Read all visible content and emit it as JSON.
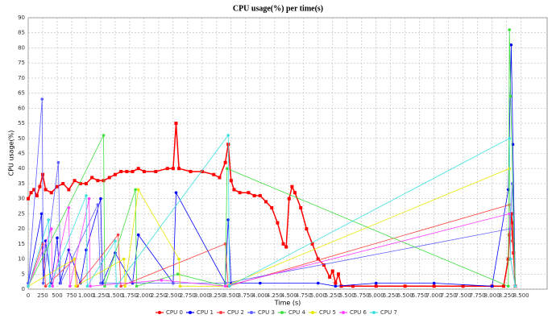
{
  "chart_data": {
    "type": "line",
    "title": "CPU usage(%) per time(s)",
    "x_label": "Time (s)",
    "y_label": "CPU usage(%)",
    "xlim": [
      0,
      8950
    ],
    "ylim": [
      0,
      90
    ],
    "grid": true,
    "legend": "bottom",
    "yticks": [
      0,
      5,
      10,
      15,
      20,
      25,
      30,
      35,
      40,
      45,
      50,
      55,
      60,
      65,
      70,
      75,
      80,
      85,
      90
    ],
    "xticks": [
      0,
      250,
      500,
      750,
      {
        "value": 1000,
        "label": "1.000"
      },
      {
        "value": 1250,
        "label": "1.250"
      },
      {
        "value": 1500,
        "label": "1.500"
      },
      {
        "value": 1750,
        "label": "1.750"
      },
      {
        "value": 2000,
        "label": "2.000"
      },
      {
        "value": 2250,
        "label": "2.250"
      },
      {
        "value": 2500,
        "label": "2.500"
      },
      {
        "value": 2750,
        "label": "2.750"
      },
      {
        "value": 3000,
        "label": "3.000"
      },
      {
        "value": 3250,
        "label": "3.250"
      },
      {
        "value": 3500,
        "label": "3.500"
      },
      {
        "value": 3750,
        "label": "3.750"
      },
      {
        "value": 4000,
        "label": "4.000"
      },
      {
        "value": 4250,
        "label": "4.250"
      },
      {
        "value": 4500,
        "label": "4.500"
      },
      {
        "value": 4750,
        "label": "4.750"
      },
      {
        "value": 5000,
        "label": "5.000"
      },
      {
        "value": 5250,
        "label": "5.250"
      },
      {
        "value": 5500,
        "label": "5.500"
      },
      {
        "value": 5750,
        "label": "5.750"
      },
      {
        "value": 6000,
        "label": "6.000"
      },
      {
        "value": 6250,
        "label": "6.250"
      },
      {
        "value": 6500,
        "label": "6.500"
      },
      {
        "value": 6750,
        "label": "6.750"
      },
      {
        "value": 7000,
        "label": "7.000"
      },
      {
        "value": 7250,
        "label": "7.250"
      },
      {
        "value": 7500,
        "label": "7.500"
      },
      {
        "value": 7750,
        "label": "7.750"
      },
      {
        "value": 8000,
        "label": "8.000"
      },
      {
        "value": 8250,
        "label": "8.250"
      },
      {
        "value": 8500,
        "label": "8.500"
      }
    ],
    "series": [
      {
        "name": "CPU 0",
        "color": "#ff0000",
        "x": [
          0,
          50,
          100,
          150,
          200,
          250,
          300,
          400,
          500,
          600,
          700,
          800,
          900,
          1000,
          1100,
          1200,
          1300,
          1400,
          1500,
          1600,
          1700,
          1800,
          1900,
          2000,
          2200,
          2400,
          2500,
          2550,
          2600,
          2800,
          3000,
          3200,
          3300,
          3400,
          3450,
          3500,
          3550,
          3650,
          3800,
          3900,
          4000,
          4100,
          4200,
          4300,
          4400,
          4450,
          4500,
          4550,
          4600,
          4700,
          4800,
          4900,
          5000,
          5100,
          5200,
          5250,
          5300,
          5350,
          5400,
          5600,
          6000,
          6500,
          7000,
          7500,
          8000,
          8200,
          8280,
          8300,
          8330,
          8350,
          8370,
          8400
        ],
        "values": [
          30,
          32,
          33,
          31,
          34,
          38,
          33,
          32,
          34,
          35,
          33,
          36,
          35,
          35,
          37,
          36,
          36,
          37,
          38,
          39,
          39,
          39,
          40,
          39,
          39,
          40,
          40,
          55,
          40,
          39,
          39,
          38,
          37,
          42,
          48,
          36,
          33,
          32,
          32,
          31,
          31,
          29,
          27,
          22,
          15,
          14,
          30,
          34,
          32,
          27,
          20,
          15,
          10,
          8,
          4,
          6,
          2,
          5,
          1,
          1,
          1,
          1,
          1,
          1,
          1,
          1,
          10,
          18,
          25,
          22,
          12,
          1
        ]
      },
      {
        "name": "CPU 1",
        "color": "#0000ff",
        "x": [
          0,
          230,
          260,
          300,
          400,
          500,
          550,
          700,
          900,
          1000,
          1250,
          1280,
          1500,
          1800,
          1900,
          2500,
          2550,
          3400,
          3450,
          3500,
          4000,
          5000,
          5300,
          6000,
          7000,
          8000,
          8280,
          8330,
          8360,
          8400
        ],
        "values": [
          2,
          25,
          2,
          16,
          2,
          17,
          2,
          13,
          2,
          13,
          30,
          2,
          12,
          2,
          18,
          2,
          32,
          2,
          23,
          2,
          2,
          2,
          1,
          2,
          2,
          1,
          33,
          81,
          48,
          1
        ]
      },
      {
        "name": "CPU 2",
        "color": "#ff4040",
        "x": [
          0,
          250,
          300,
          800,
          850,
          1550,
          1600,
          3400,
          3450,
          8300,
          8350,
          8400
        ],
        "values": [
          1,
          15,
          1,
          10,
          1,
          18,
          1,
          15,
          1,
          28,
          16,
          1
        ]
      },
      {
        "name": "CPU 3",
        "color": "#6060ff",
        "x": [
          0,
          240,
          260,
          520,
          560,
          1200,
          1250,
          2500,
          3400,
          8310,
          8350,
          8400
        ],
        "values": [
          2,
          63,
          2,
          42,
          2,
          28,
          2,
          2,
          2,
          20,
          35,
          1
        ]
      },
      {
        "name": "CPU 4",
        "color": "#40e040",
        "x": [
          0,
          1300,
          1320,
          1850,
          1870,
          2580,
          3400,
          3430,
          8280,
          8300,
          8320,
          8400
        ],
        "values": [
          1,
          51,
          1,
          33,
          1,
          5,
          1,
          40,
          1,
          86,
          64,
          1
        ]
      },
      {
        "name": "CPU 5",
        "color": "#e8e800",
        "x": [
          0,
          800,
          820,
          1650,
          1670,
          1900,
          2600,
          2620,
          3400,
          8300,
          8320,
          8400
        ],
        "values": [
          1,
          10,
          1,
          10,
          1,
          33,
          10,
          1,
          1,
          40,
          10,
          1
        ]
      },
      {
        "name": "CPU 6",
        "color": "#ff40ff",
        "x": [
          0,
          400,
          420,
          700,
          720,
          1050,
          1070,
          2300,
          3400,
          8300,
          8320,
          8400
        ],
        "values": [
          1,
          20,
          1,
          27,
          1,
          30,
          1,
          3,
          1,
          25,
          10,
          1
        ]
      },
      {
        "name": "CPU 7",
        "color": "#40e0e0",
        "x": [
          0,
          350,
          370,
          1000,
          1020,
          1500,
          1520,
          3450,
          3470,
          8300,
          8320,
          8400
        ],
        "values": [
          1,
          23,
          1,
          31,
          1,
          16,
          1,
          51,
          1,
          50,
          10,
          1
        ]
      }
    ]
  }
}
